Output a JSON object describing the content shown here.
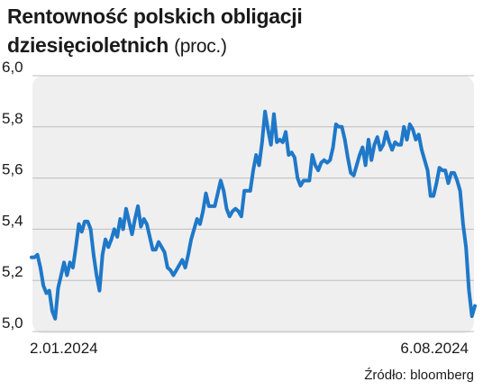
{
  "header": {
    "title_line1": "Rentowność polskich obligacji",
    "title_line2": "dziesięcioletnich",
    "unit": "(proc.)"
  },
  "footer": {
    "source": "Źródło: bloomberg"
  },
  "colors": {
    "line": "#1f78c8",
    "plot_background": "#efefef",
    "grid": "#bdbdbd",
    "text": "#1a1a1a"
  },
  "chart_data": {
    "type": "line",
    "title": "Rentowność polskich obligacji dziesięcioletnich",
    "ylabel": "(proc.)",
    "ylim": [
      5.0,
      6.0
    ],
    "yticks": [
      "6,0",
      "5,8",
      "5,6",
      "5,4",
      "5,2",
      "5,0"
    ],
    "ytick_values": [
      6.0,
      5.8,
      5.6,
      5.4,
      5.2,
      5.0
    ],
    "x_labels": [
      "2.01.2024",
      "6.08.2024"
    ],
    "x_range": [
      "2024-01-02",
      "2024-08-06"
    ],
    "grid": true,
    "legend": "none",
    "series": [
      {
        "values": [
          5.29,
          5.29,
          5.3,
          5.25,
          5.18,
          5.15,
          5.16,
          5.08,
          5.05,
          5.17,
          5.22,
          5.27,
          5.22,
          5.27,
          5.25,
          5.33,
          5.42,
          5.39,
          5.43,
          5.43,
          5.4,
          5.3,
          5.22,
          5.16,
          5.3,
          5.36,
          5.33,
          5.36,
          5.4,
          5.37,
          5.44,
          5.4,
          5.48,
          5.43,
          5.38,
          5.44,
          5.49,
          5.41,
          5.44,
          5.42,
          5.37,
          5.32,
          5.32,
          5.35,
          5.33,
          5.31,
          5.25,
          5.24,
          5.22,
          5.24,
          5.26,
          5.28,
          5.25,
          5.3,
          5.36,
          5.4,
          5.44,
          5.42,
          5.47,
          5.54,
          5.49,
          5.49,
          5.49,
          5.54,
          5.59,
          5.55,
          5.48,
          5.45,
          5.47,
          5.48,
          5.47,
          5.45,
          5.55,
          5.55,
          5.55,
          5.63,
          5.69,
          5.65,
          5.74,
          5.86,
          5.79,
          5.73,
          5.85,
          5.74,
          5.75,
          5.74,
          5.78,
          5.69,
          5.7,
          5.68,
          5.6,
          5.57,
          5.59,
          5.59,
          5.59,
          5.69,
          5.65,
          5.63,
          5.66,
          5.67,
          5.66,
          5.67,
          5.72,
          5.81,
          5.8,
          5.8,
          5.75,
          5.68,
          5.62,
          5.61,
          5.65,
          5.69,
          5.72,
          5.65,
          5.75,
          5.67,
          5.73,
          5.76,
          5.71,
          5.73,
          5.78,
          5.74,
          5.71,
          5.74,
          5.73,
          5.73,
          5.8,
          5.75,
          5.81,
          5.79,
          5.75,
          5.77,
          5.71,
          5.67,
          5.63,
          5.53,
          5.53,
          5.58,
          5.64,
          5.63,
          5.63,
          5.58,
          5.62,
          5.62,
          5.59,
          5.55,
          5.42,
          5.33,
          5.16,
          5.06,
          5.1
        ]
      }
    ]
  }
}
